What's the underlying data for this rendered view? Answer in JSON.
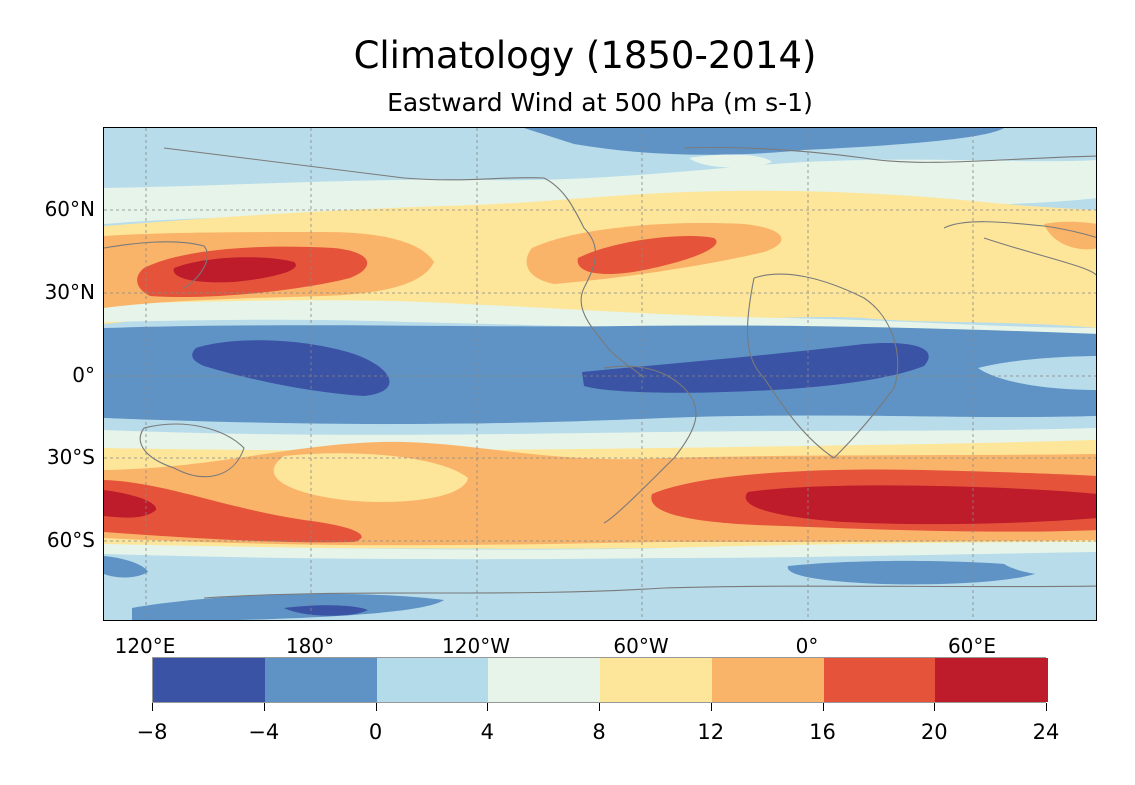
{
  "title": "Climatology (1850-2014)",
  "subtitle": "Eastward Wind at 500 hPa (m s-1)",
  "lat_labels": [
    "60°N",
    "30°N",
    "0°",
    "30°S",
    "60°S"
  ],
  "lon_labels": [
    "120°E",
    "180°",
    "120°W",
    "60°W",
    "0°",
    "60°E"
  ],
  "colorbar": {
    "levels": [
      "−8",
      "−4",
      "0",
      "4",
      "8",
      "12",
      "16",
      "20",
      "24"
    ],
    "colors": [
      "#3a53a4",
      "#5f93c5",
      "#b3dbea",
      "#e6f4ea",
      "#fde69a",
      "#fab46a",
      "#e5543a",
      "#be1c2a"
    ]
  },
  "field": {
    "variable": "Eastward Wind at 500 hPa",
    "units": "m s-1",
    "period": "1850-2014",
    "projection": "PlateCarree, central longitude 210°E",
    "features": [
      {
        "name": "North Pacific jet core",
        "value_range": "20 to 24"
      },
      {
        "name": "North Atlantic jet core",
        "value_range": "16 to 20"
      },
      {
        "name": "Southern Hemisphere westerly jet (Indian Ocean)",
        "value_range": "20 to 24"
      },
      {
        "name": "Tropical easterlies (Pacific and Atlantic)",
        "value_range": "-8 to -4"
      }
    ]
  }
}
